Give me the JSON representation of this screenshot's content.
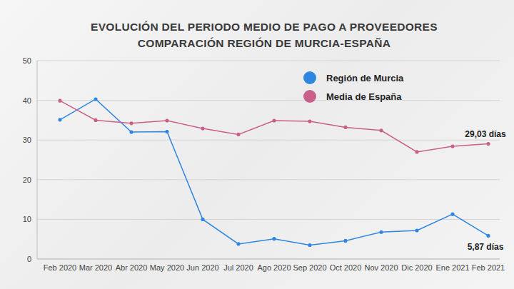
{
  "chart_data": {
    "type": "line",
    "title": "EVOLUCIÓN DEL PERIODO MEDIO DE PAGO A PROVEEDORES",
    "subtitle": "COMPARACIÓN REGIÓN DE MURCIA-ESPAÑA",
    "categories": [
      "Feb 2020",
      "Mar 2020",
      "Abr 2020",
      "May 2020",
      "Jun 2020",
      "Jul 2020",
      "Ago 2020",
      "Sep 2020",
      "Oct 2020",
      "Nov 2020",
      "Dic 2020",
      "Ene 2021",
      "Feb 2021"
    ],
    "series": [
      {
        "name": "Región de Murcia",
        "color": "#2f86e0",
        "values": [
          35.1,
          40.3,
          32.0,
          32.1,
          10.0,
          3.8,
          5.1,
          3.5,
          4.6,
          6.8,
          7.2,
          11.3,
          5.87
        ]
      },
      {
        "name": "Media de España",
        "color": "#c8608a",
        "values": [
          39.9,
          35.0,
          34.2,
          34.9,
          32.9,
          31.4,
          34.9,
          34.7,
          33.2,
          32.4,
          27.0,
          28.4,
          29.03
        ]
      }
    ],
    "ylim": [
      0,
      50
    ],
    "yticks": [
      0,
      10,
      20,
      30,
      40,
      50
    ],
    "grid": true,
    "legend": "upper right",
    "marker": "circle",
    "annotations": [
      {
        "text": "29,03 días",
        "series": "Media de España",
        "category": "Feb 2021"
      },
      {
        "text": "5,87 días",
        "series": "Región de Murcia",
        "category": "Feb 2021"
      }
    ]
  }
}
